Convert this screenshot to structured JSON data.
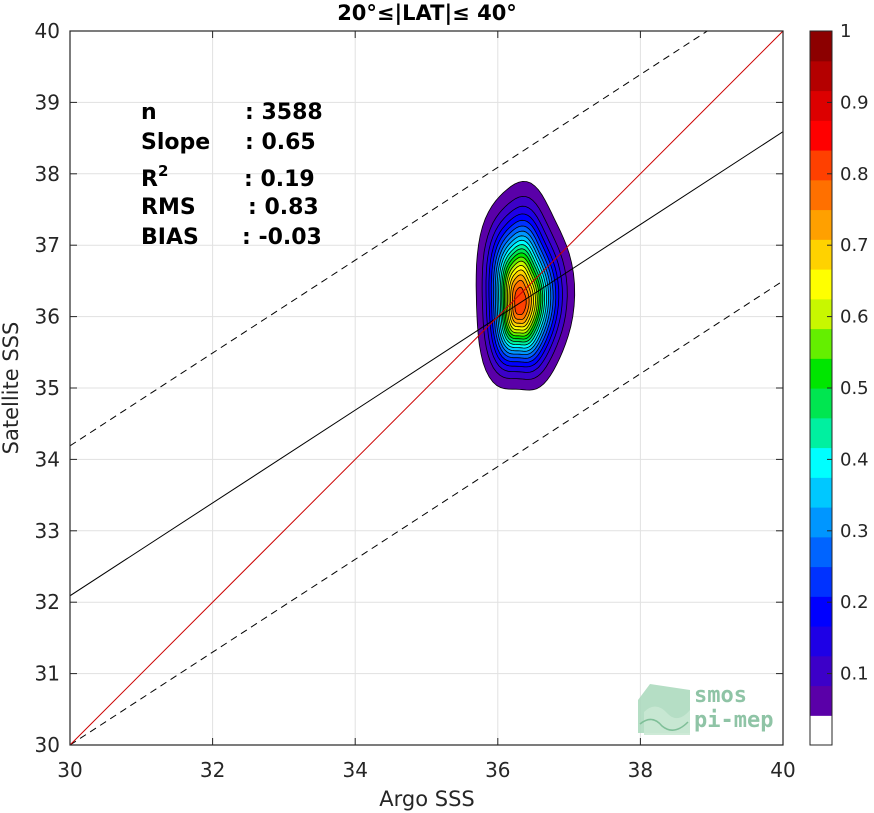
{
  "chart_data": {
    "type": "heatmap",
    "title_prefix": "20°≤|LAT|≤ 40°",
    "title": "20°≤|LAT|≤ 40°",
    "xlabel": "Argo SSS",
    "ylabel": "Satellite SSS",
    "xlim": [
      30,
      40
    ],
    "ylim": [
      30,
      40
    ],
    "xticks": [
      30,
      32,
      34,
      36,
      38,
      40
    ],
    "yticks": [
      30,
      31,
      32,
      33,
      34,
      35,
      36,
      37,
      38,
      39,
      40
    ],
    "grid": true,
    "density_peak": {
      "x": 36.35,
      "y": 36.3
    },
    "density_levels": [
      0.05,
      0.1,
      0.15,
      0.2,
      0.25,
      0.3,
      0.35,
      0.4,
      0.45,
      0.5,
      0.55,
      0.6,
      0.65,
      0.7,
      0.75,
      0.8,
      0.85,
      0.9,
      0.95
    ],
    "lines": {
      "identity": {
        "slope": 1,
        "intercept": 0,
        "color": "#cc0000"
      },
      "regression": {
        "slope": 0.65,
        "intercept": 12.59,
        "color": "#000000"
      },
      "upper_dashed": {
        "slope": 0.65,
        "intercept": 14.69,
        "color": "#000000"
      },
      "lower_dashed": {
        "slope": 0.65,
        "intercept": 10.5,
        "color": "#000000"
      }
    },
    "stats": [
      {
        "label": "n",
        "value": ": 3588"
      },
      {
        "label": "Slope",
        "value": ": 0.65"
      },
      {
        "label": "R",
        "sup": "2",
        "value": ": 0.19"
      },
      {
        "label": "RMS",
        "value": ": 0.83"
      },
      {
        "label": "BIAS",
        "value": ": -0.03"
      }
    ],
    "colorbar": {
      "range": [
        0,
        1
      ],
      "ticks": [
        0.1,
        0.2,
        0.3,
        0.4,
        0.5,
        0.6,
        0.7,
        0.8,
        0.9,
        1
      ],
      "tick_labels": [
        "0.1",
        "0.2",
        "0.3",
        "0.4",
        "0.5",
        "0.6",
        "0.7",
        "0.8",
        "0.9",
        "1"
      ],
      "colors": [
        "#ffffff",
        "#5a00a8",
        "#3c00c8",
        "#1e00e6",
        "#0000ff",
        "#0032ff",
        "#0064ff",
        "#0096ff",
        "#00c8ff",
        "#00ffff",
        "#00f0a0",
        "#00e650",
        "#00e600",
        "#64ef00",
        "#c8f700",
        "#ffff00",
        "#ffd200",
        "#ffa000",
        "#ff7000",
        "#ff4000",
        "#ff0000",
        "#dc0000",
        "#b40000",
        "#8c0000"
      ]
    },
    "watermark": {
      "line1": "smos",
      "line2": "pi-mep"
    }
  }
}
